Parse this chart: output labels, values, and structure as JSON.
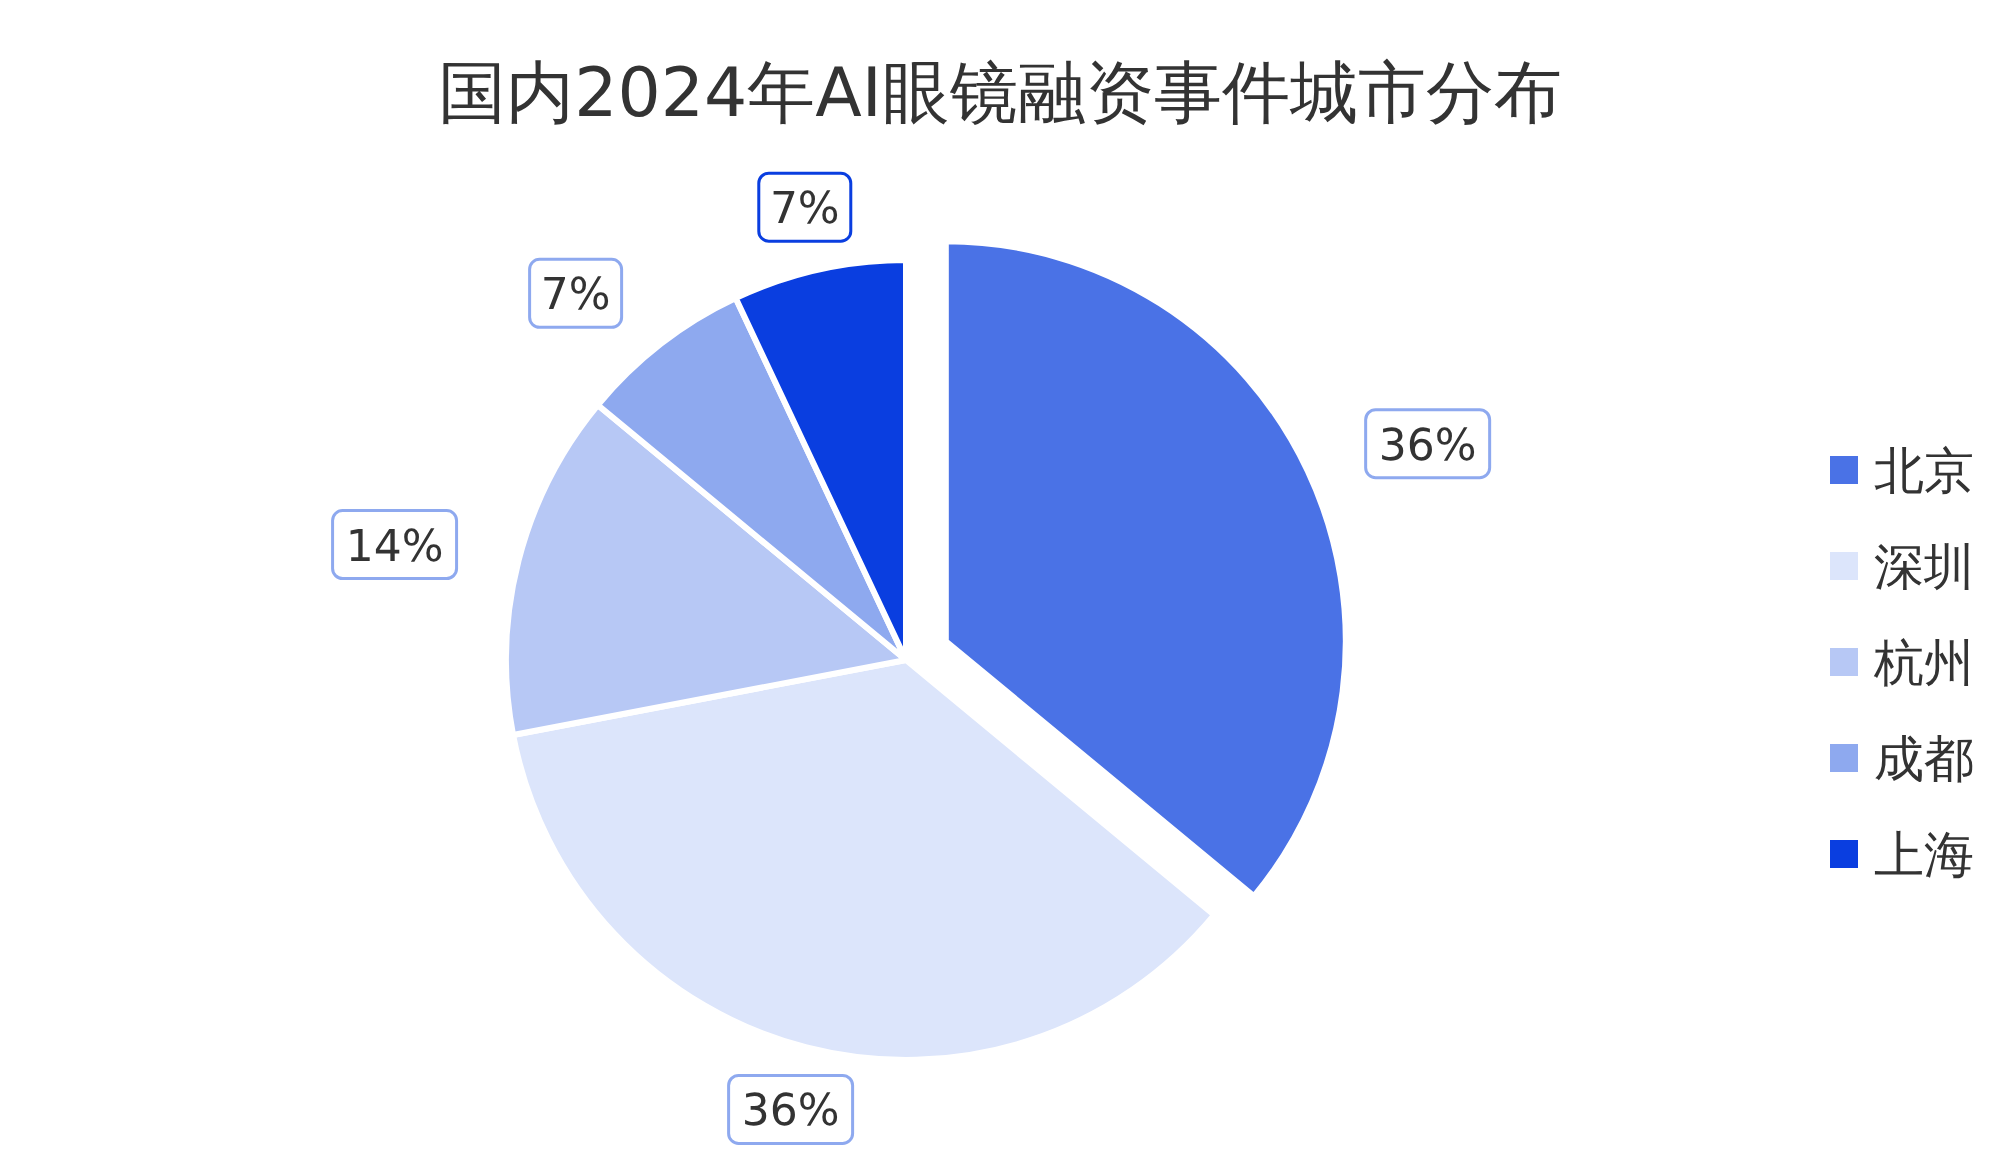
{
  "chart_data": {
    "type": "pie",
    "title": "国内2024年AI眼镜融资事件城市分布",
    "categories": [
      "北京",
      "深圳",
      "杭州",
      "成都",
      "上海"
    ],
    "values": [
      36,
      36,
      14,
      7,
      7
    ],
    "colors": [
      "#4a72e6",
      "#dce5fb",
      "#b7c8f5",
      "#8ea9ef",
      "#0a3ee0"
    ],
    "value_labels": [
      "36%",
      "36%",
      "14%",
      "7%",
      "7%"
    ],
    "legend": "right"
  }
}
